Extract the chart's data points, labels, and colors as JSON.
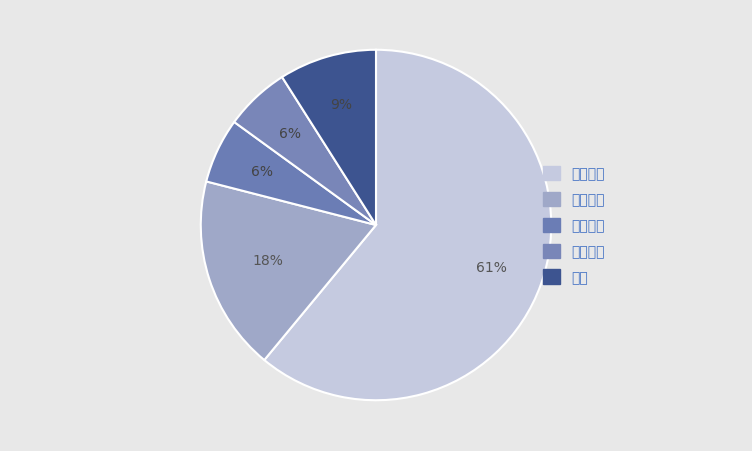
{
  "labels": [
    "城市等级",
    "县级医院",
    "农村基层",
    "城市基层",
    "药店"
  ],
  "values": [
    61,
    18,
    6,
    6,
    9
  ],
  "colors": [
    "#C5CAE0",
    "#9FA8C8",
    "#6B7DB5",
    "#7986B8",
    "#3D5490"
  ],
  "pct_labels": [
    "61%",
    "18%",
    "6%",
    "6%",
    "9%"
  ],
  "background_color": "#E8E8E8",
  "legend_text_color": "#4472C4",
  "wedge_linewidth": 1.5,
  "wedge_linecolor": "#FFFFFF",
  "startangle": 90,
  "figsize": [
    7.52,
    4.52
  ],
  "dpi": 100
}
